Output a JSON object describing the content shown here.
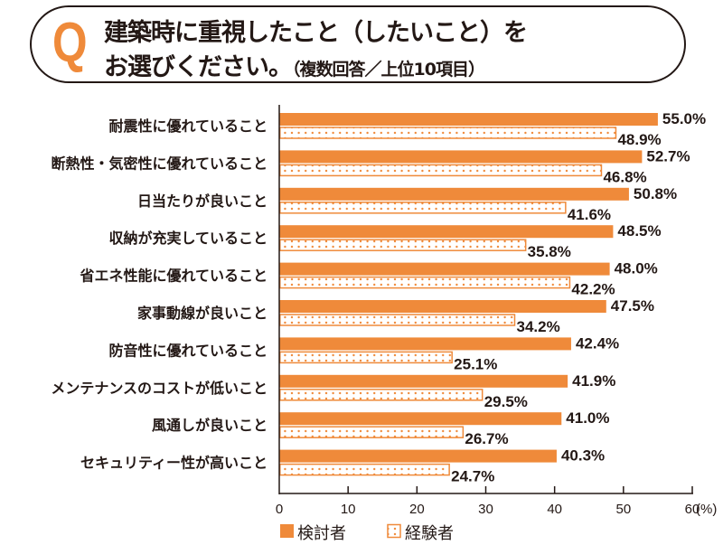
{
  "header": {
    "q_mark": "Q",
    "title_line1": "建築時に重視したこと（したいこと）を",
    "title_line2": "お選びください。",
    "title_note": "（複数回答／上位10項目）"
  },
  "chart_data": {
    "type": "bar",
    "orientation": "horizontal",
    "categories": [
      "耐震性に優れていること",
      "断熱性・気密性に優れていること",
      "日当たりが良いこと",
      "収納が充実していること",
      "省エネ性能に優れていること",
      "家事動線が良いこと",
      "防音性に優れていること",
      "メンテナンスのコストが低いこと",
      "風通しが良いこと",
      "セキュリティー性が高いこと"
    ],
    "series": [
      {
        "name": "検討者",
        "style": "solid",
        "color": "#ef8a3a",
        "values": [
          55.0,
          52.7,
          50.8,
          48.5,
          48.0,
          47.5,
          42.4,
          41.9,
          41.0,
          40.3
        ],
        "labels": [
          "55.0%",
          "52.7%",
          "50.8%",
          "48.5%",
          "48.0%",
          "47.5%",
          "42.4%",
          "41.9%",
          "41.0%",
          "40.3%"
        ]
      },
      {
        "name": "経験者",
        "style": "dotted",
        "color": "#ef8a3a",
        "values": [
          48.9,
          46.8,
          41.6,
          35.8,
          42.2,
          34.2,
          25.1,
          29.5,
          26.7,
          24.7
        ],
        "labels": [
          "48.9%",
          "46.8%",
          "41.6%",
          "35.8%",
          "42.2%",
          "34.2%",
          "25.1%",
          "29.5%",
          "26.7%",
          "24.7%"
        ]
      }
    ],
    "xlim": [
      0,
      60
    ],
    "xticks": [
      "0",
      "10",
      "20",
      "30",
      "40",
      "50",
      "60"
    ],
    "xunit": "(%)",
    "grid": false,
    "legend": "bottom-left"
  }
}
